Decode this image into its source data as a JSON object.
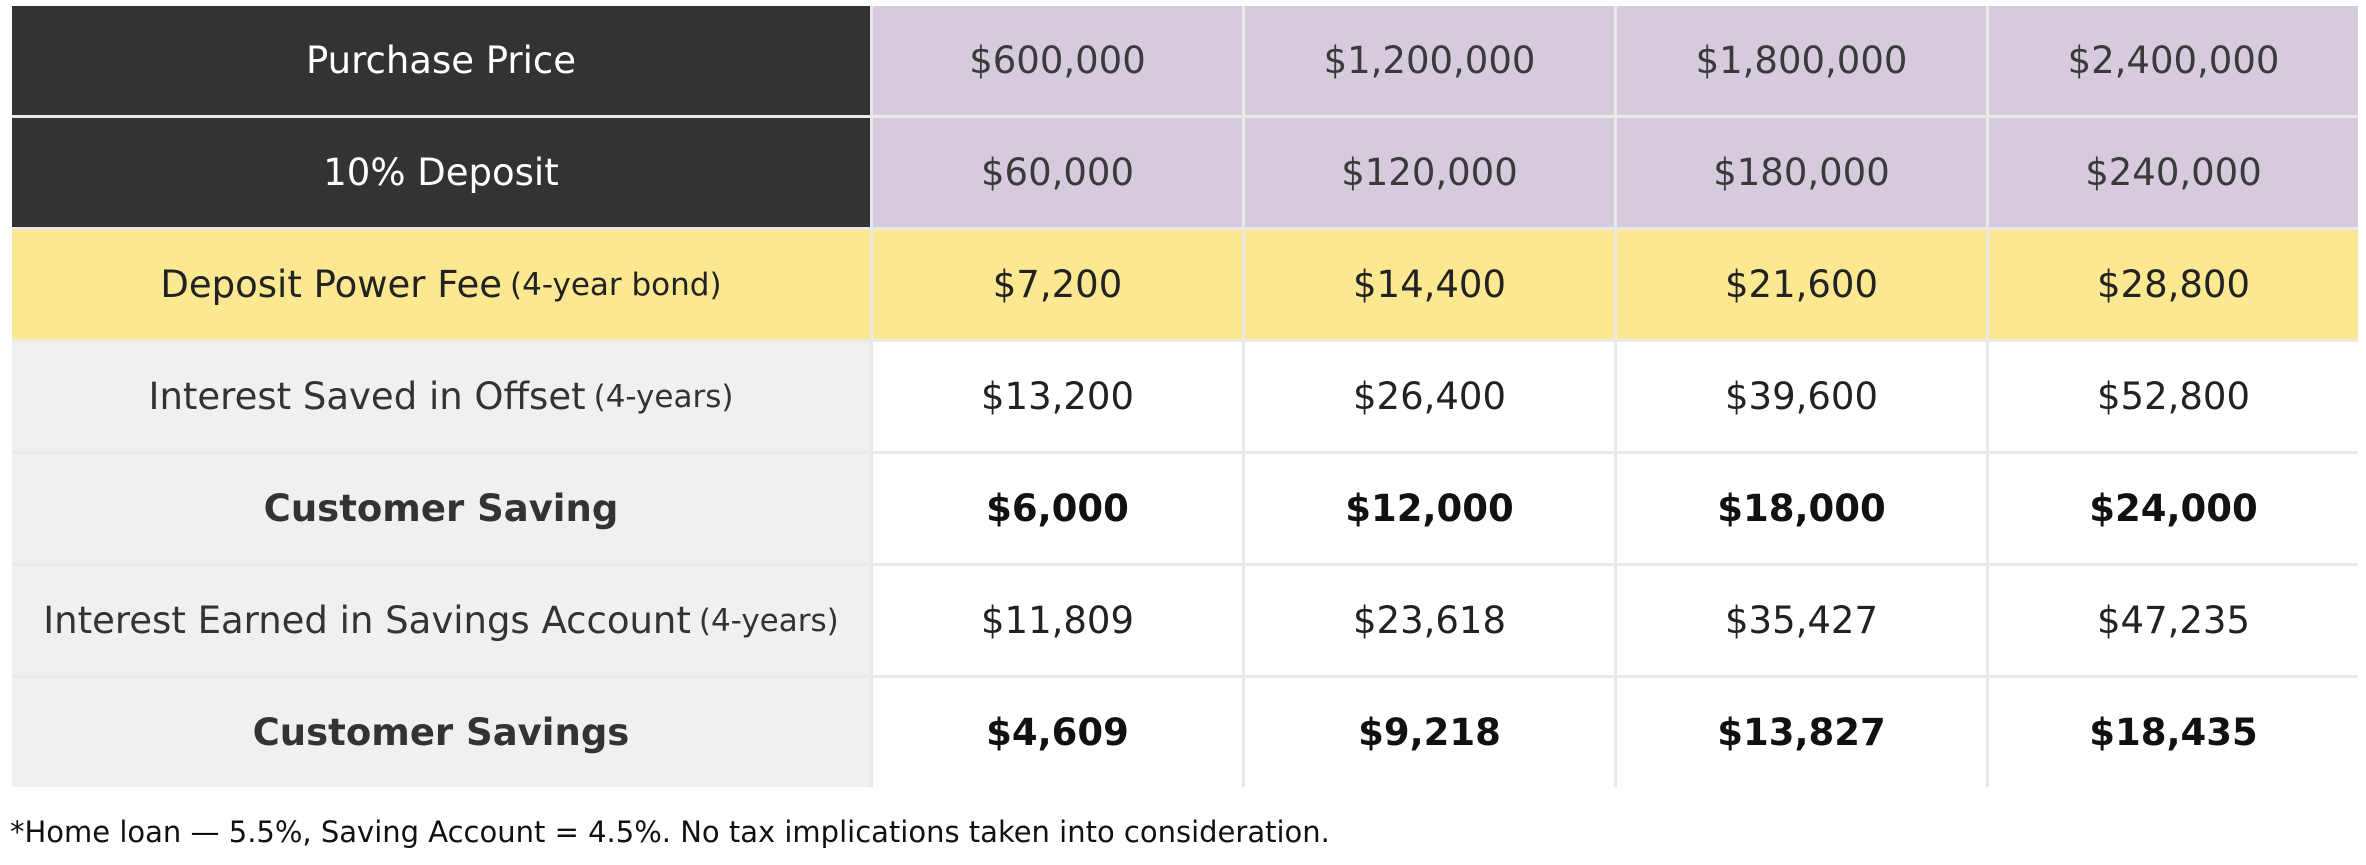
{
  "table": {
    "rows": [
      {
        "label": "Purchase Price",
        "values": [
          "$600,000",
          "$1,200,000",
          "$1,800,000",
          "$2,400,000"
        ]
      },
      {
        "label": "10% Deposit",
        "values": [
          "$60,000",
          "$120,000",
          "$180,000",
          "$240,000"
        ]
      },
      {
        "label": "Deposit Power Fee",
        "note": "(4-year bond)",
        "values": [
          "$7,200",
          "$14,400",
          "$21,600",
          "$28,800"
        ]
      },
      {
        "label": "Interest Saved in Offset",
        "note": "(4-years)",
        "values": [
          "$13,200",
          "$26,400",
          "$39,600",
          "$52,800"
        ]
      },
      {
        "label": "Customer Saving",
        "values": [
          "$6,000",
          "$12,000",
          "$18,000",
          "$24,000"
        ]
      },
      {
        "label": "Interest Earned in Savings Account",
        "note": "(4-years)",
        "values": [
          "$11,809",
          "$23,618",
          "$35,427",
          "$47,235"
        ]
      },
      {
        "label": "Customer Savings",
        "values": [
          "$4,609",
          "$9,218",
          "$13,827",
          "$18,435"
        ]
      }
    ]
  },
  "footnote": "*Home loan — 5.5%, Saving Account = 4.5%. No tax implications taken into consideration."
}
